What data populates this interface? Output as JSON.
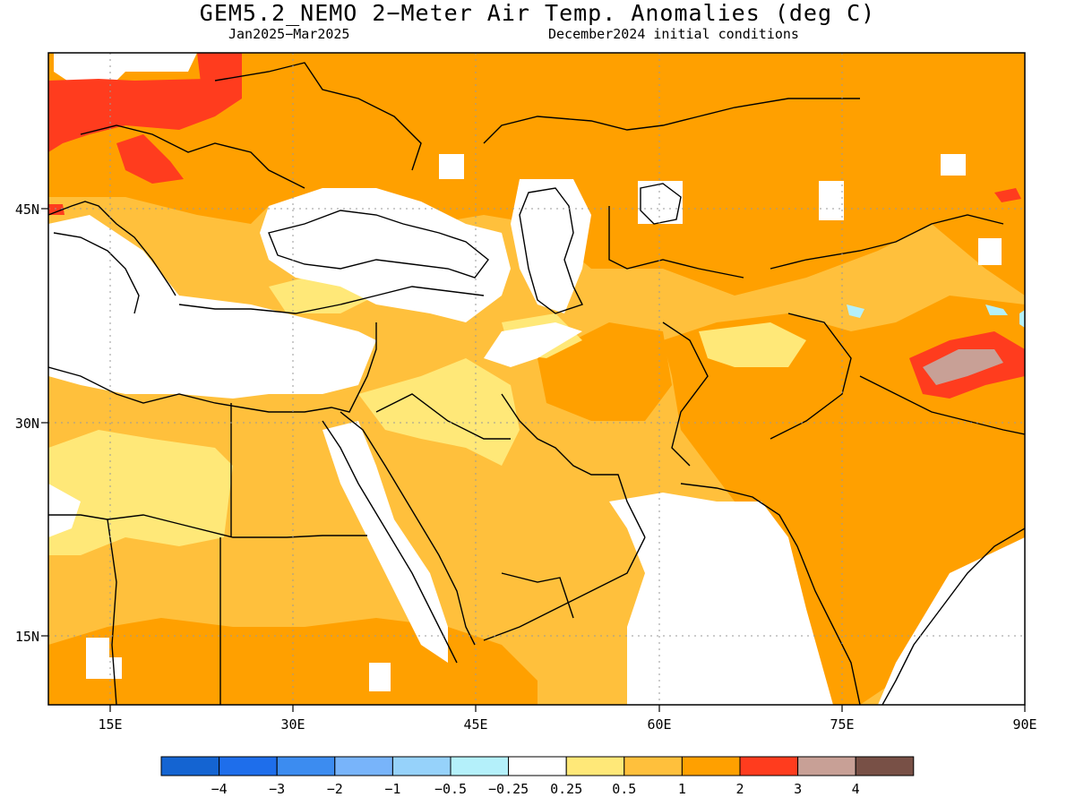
{
  "title": "GEM5.2_NEMO 2−Meter Air Temp. Anomalies (deg C)",
  "period": "Jan2025−Mar2025",
  "initial_conditions": "December2024 initial conditions",
  "axes": {
    "x_ticks": [
      {
        "value": 15,
        "label": "15E"
      },
      {
        "value": 30,
        "label": "30E"
      },
      {
        "value": 45,
        "label": "45E"
      },
      {
        "value": 60,
        "label": "60E"
      },
      {
        "value": 75,
        "label": "75E"
      },
      {
        "value": 90,
        "label": "90E"
      }
    ],
    "y_ticks": [
      {
        "value": 45,
        "label": "45N"
      },
      {
        "value": 30,
        "label": "30N"
      },
      {
        "value": 15,
        "label": "15N"
      }
    ],
    "lon_range": [
      10,
      90
    ],
    "lat_range": [
      10,
      55
    ],
    "grid": "dotted"
  },
  "colorbar": {
    "colors": [
      "#1464d2",
      "#1e6eeb",
      "#3c8cf0",
      "#78b4fa",
      "#96d2fa",
      "#b4f0fa",
      "#ffffff",
      "#ffe878",
      "#ffc03c",
      "#ffa000",
      "#ff3c1e",
      "#c8a096",
      "#785046"
    ],
    "labels": [
      "−4",
      "−3",
      "−2",
      "−1",
      "−0.5",
      "−0.25",
      "0.25",
      "0.5",
      "1",
      "2",
      "3",
      "4"
    ]
  },
  "legend_colors": {
    "white": "#ffffff",
    "light_yellow": "#ffe878",
    "light_orange": "#ffc03c",
    "orange": "#ffa000",
    "red": "#ff3c1e",
    "brownish": "#c8a096",
    "light_blue": "#b4f0fa"
  }
}
